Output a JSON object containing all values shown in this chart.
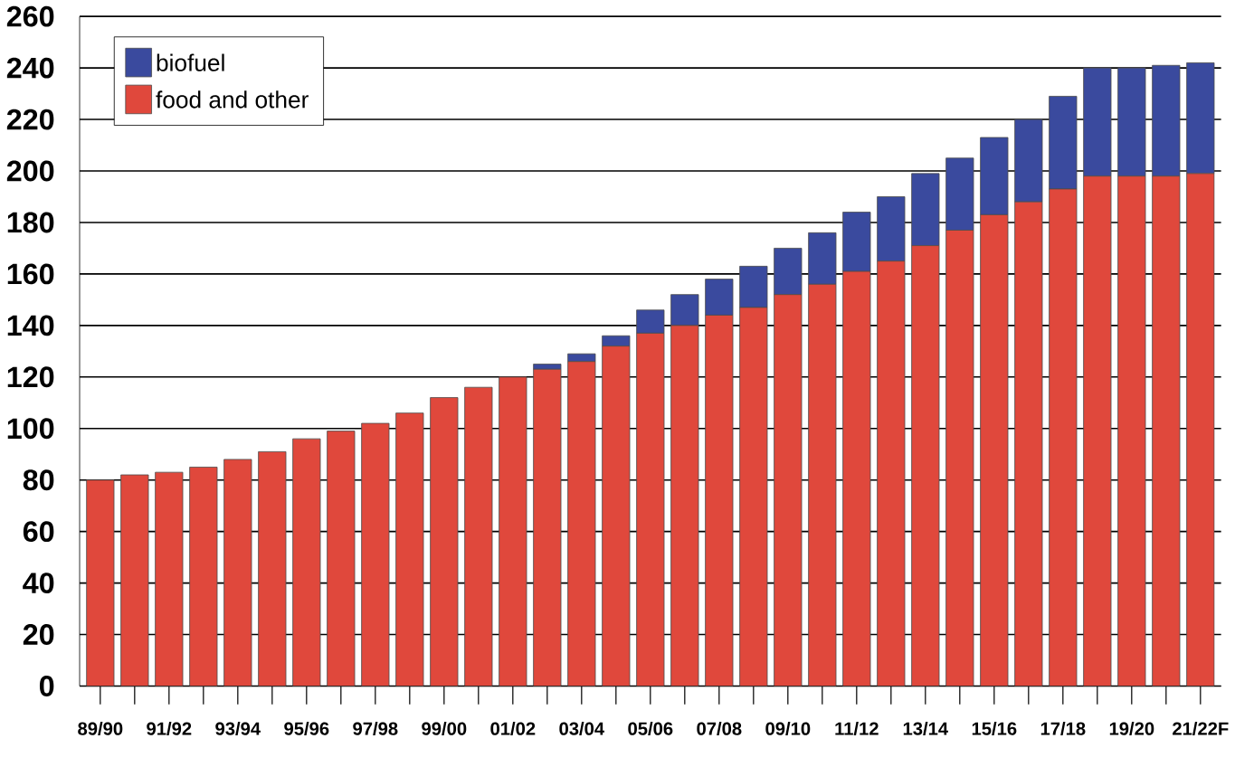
{
  "chart_data": {
    "type": "bar",
    "stacked": true,
    "categories": [
      "89/90",
      null,
      "91/92",
      null,
      "93/94",
      null,
      "95/96",
      null,
      "97/98",
      null,
      "99/00",
      null,
      "01/02",
      null,
      "03/04",
      null,
      "05/06",
      null,
      "07/08",
      null,
      "09/10",
      null,
      "11/12",
      null,
      "13/14",
      null,
      "15/16",
      null,
      "17/18",
      null,
      "19/20",
      null,
      "21/22F"
    ],
    "series": [
      {
        "name": "food and other",
        "color": "#e0483c",
        "values": [
          80,
          82,
          83,
          85,
          88,
          91,
          96,
          99,
          102,
          106,
          112,
          116,
          120,
          123,
          126,
          132,
          137,
          140,
          144,
          147,
          152,
          156,
          161,
          165,
          171,
          177,
          183,
          188,
          193,
          198,
          198,
          198,
          199
        ]
      },
      {
        "name": "biofuel",
        "color": "#3a4a9e",
        "values": [
          0,
          0,
          0,
          0,
          0,
          0,
          0,
          0,
          0,
          0,
          0,
          0,
          0,
          2,
          3,
          4,
          9,
          12,
          14,
          16,
          18,
          20,
          23,
          25,
          28,
          28,
          30,
          32,
          36,
          42,
          42,
          43,
          43
        ]
      }
    ],
    "ylim": [
      0,
      260
    ],
    "yticks": [
      0,
      20,
      40,
      60,
      80,
      100,
      120,
      140,
      160,
      180,
      200,
      220,
      240,
      260
    ],
    "grid": "y",
    "legend": "top left"
  }
}
